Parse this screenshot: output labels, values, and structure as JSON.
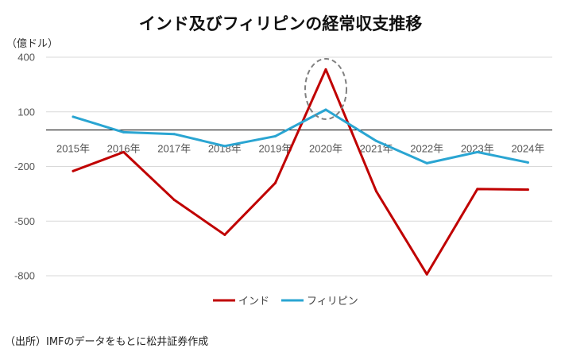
{
  "header": {
    "title": "インド及びフィリピンの経常収支推移",
    "unit": "（億ドル）"
  },
  "footer": {
    "source": "（出所）IMFのデータをもとに松井証券作成"
  },
  "colors": {
    "india": "#C00000",
    "philippines": "#2AA5D2",
    "grid": "#D9D9D9",
    "zero_line": "#000000",
    "highlight_circle": "#808080"
  },
  "chart_data": {
    "type": "line",
    "title": "インド及びフィリピンの経常収支推移",
    "ylabel": "（億ドル）",
    "x": [
      "2015年",
      "2016年",
      "2017年",
      "2018年",
      "2019年",
      "2020年",
      "2021年",
      "2022年",
      "2023年",
      "2024年"
    ],
    "yticks": [
      400,
      100,
      -200,
      -500,
      -800
    ],
    "ytick_labels": [
      "400",
      "100",
      "-200",
      "-500",
      "-800"
    ],
    "ylim": [
      -800,
      400
    ],
    "grid": true,
    "legend_position": "bottom",
    "series": [
      {
        "name": "インド",
        "color": "#C00000",
        "values": [
          -225,
          -121,
          -383,
          -575,
          -291,
          333,
          -337,
          -792,
          -324,
          -327
        ]
      },
      {
        "name": "フィリピン",
        "color": "#2AA5D2",
        "values": [
          73,
          -12,
          -22,
          -88,
          -34,
          112,
          -60,
          -182,
          -121,
          -178
        ]
      }
    ],
    "annotations": [
      {
        "type": "dashed-circle",
        "x": "2020年"
      }
    ]
  }
}
